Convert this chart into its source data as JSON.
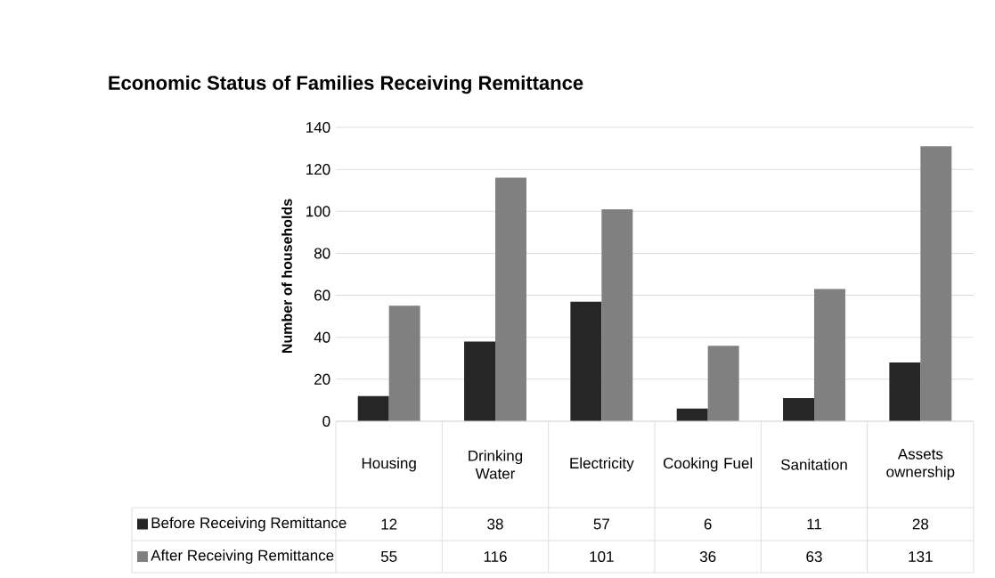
{
  "chart_data": {
    "type": "bar",
    "title": "Economic Status of Families Receiving Remittance",
    "ylabel": "Number of households",
    "categories": [
      "Housing",
      "Drinking Water",
      "Electricity",
      "Cooking Fuel",
      "Sanitation",
      "Assets ownership"
    ],
    "series": [
      {
        "name": "Before Receiving Remittance",
        "color": "#262626",
        "values": [
          12,
          38,
          57,
          6,
          11,
          28
        ]
      },
      {
        "name": "After Receiving Remittance",
        "color": "#808080",
        "values": [
          55,
          116,
          101,
          36,
          63,
          131
        ]
      }
    ],
    "ylim": [
      0,
      140
    ],
    "yticks": [
      0,
      20,
      40,
      60,
      80,
      100,
      120,
      140
    ],
    "grid": "y",
    "legend": "bottom",
    "data_labels": true
  }
}
